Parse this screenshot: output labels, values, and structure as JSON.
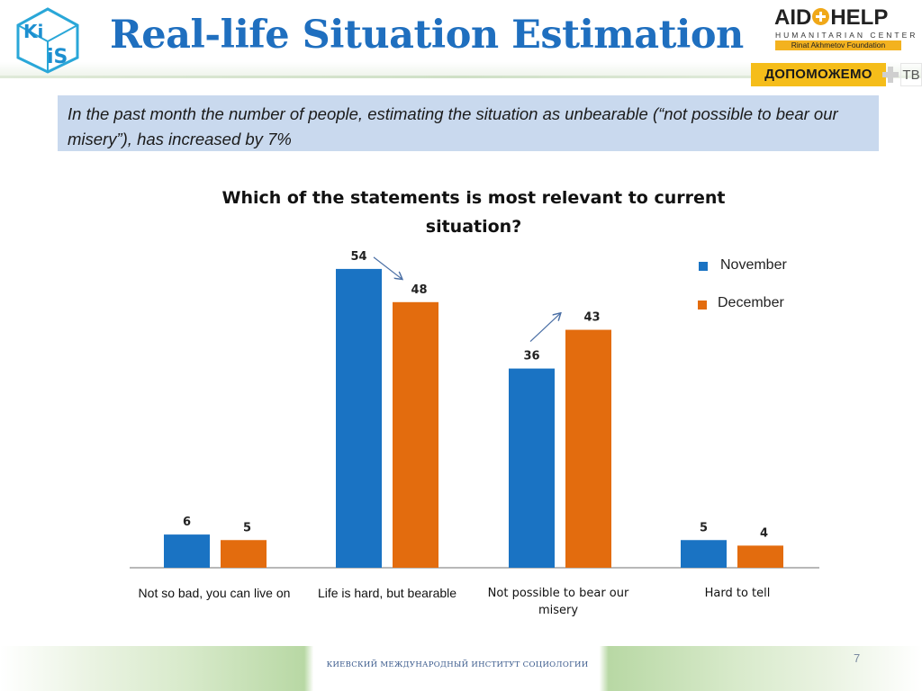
{
  "header": {
    "title": "Real-life Situation Estimation",
    "kiis_logo_text": "KIIS",
    "aid_logo_title_left": "AID",
    "aid_logo_title_right": "HELP",
    "aid_logo_subtitle": "HUMANITARIAN CENTER",
    "aid_logo_foundation": "Rinat Akhmetov Foundation",
    "dopo_label": "ДОПОМОЖЕМО",
    "dopo_suffix": "ТВ"
  },
  "callout": {
    "text": "In the past month the number of people, estimating the situation as unbearable (“not possible to bear our misery”), has increased by 7%"
  },
  "colors": {
    "november": "#1a73c3",
    "december": "#e36c0e",
    "title": "#1f6fbf",
    "callout_bg": "#c9d9ee"
  },
  "chart_data": {
    "type": "bar",
    "title": "Which of the statements is most relevant to current situation?",
    "categories": [
      "Not so bad, you can live on",
      "Life is hard, but bearable",
      "Not possible to bear our misery",
      "Hard to tell"
    ],
    "series": [
      {
        "name": "November",
        "values": [
          6,
          54,
          36,
          5
        ]
      },
      {
        "name": "December",
        "values": [
          5,
          48,
          43,
          4
        ]
      }
    ],
    "legend_position": "top-right",
    "grid": false,
    "annotations": [
      "arrow from 54 to 48",
      "arrow from 36 to 43"
    ]
  },
  "footer": {
    "text": "КИЕВСКИЙ МЕЖДУНАРОДНЫЙ ИНСТИТУТ СОЦИОЛОГИИ",
    "page_number": "7"
  }
}
